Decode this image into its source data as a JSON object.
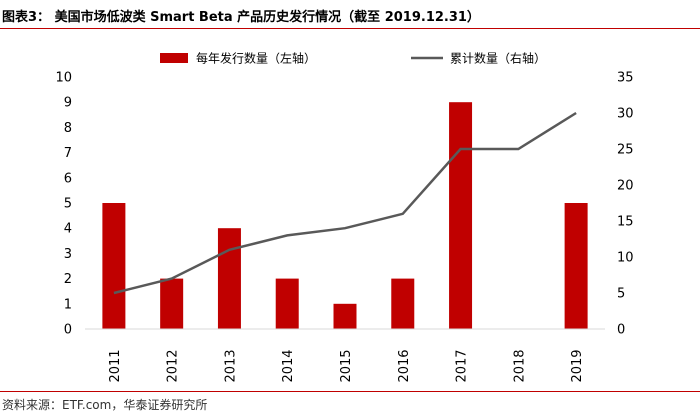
{
  "header": {
    "title": "图表3：  美国市场低波类 Smart Beta 产品历史发行情况（截至 2019.12.31）"
  },
  "footer": {
    "source": "资料来源：ETF.com，华泰证券研究所"
  },
  "colors": {
    "bar": "#c00000",
    "line": "#595959",
    "rule": "#c00000",
    "axis": "#d9d9d9"
  },
  "chart_data": {
    "type": "bar+line",
    "categories": [
      "2011",
      "2012",
      "2013",
      "2014",
      "2015",
      "2016",
      "2017",
      "2018",
      "2019"
    ],
    "series": [
      {
        "name": "每年发行数量（左轴）",
        "type": "bar",
        "axis": "left",
        "values": [
          5,
          2,
          4,
          2,
          1,
          2,
          9,
          0,
          5
        ]
      },
      {
        "name": "累计数量（右轴）",
        "type": "line",
        "axis": "right",
        "values": [
          5,
          7,
          11,
          13,
          14,
          16,
          25,
          25,
          30
        ]
      }
    ],
    "y_left": {
      "min": 0,
      "max": 10,
      "ticks": [
        "0",
        "1",
        "2",
        "3",
        "4",
        "5",
        "6",
        "7",
        "8",
        "9",
        "10"
      ]
    },
    "y_right": {
      "min": 0,
      "max": 35,
      "ticks": [
        "0",
        "5",
        "10",
        "15",
        "20",
        "25",
        "30",
        "35"
      ]
    },
    "grid": false,
    "legend_position": "top"
  }
}
